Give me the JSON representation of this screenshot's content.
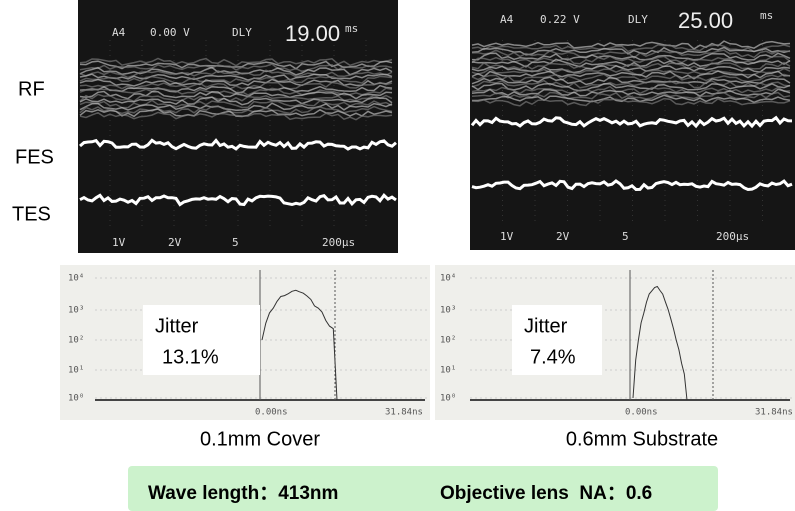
{
  "row_labels": [
    "RF",
    "FES",
    "TES"
  ],
  "scopes": [
    {
      "channel": "A4",
      "volts": "0.00 V",
      "mode": "DLY",
      "delay": "19.00",
      "delay_unit": "ms",
      "scales": [
        "1V",
        "2V",
        "5",
        "200μs"
      ]
    },
    {
      "channel": "A4",
      "volts": "0.22 V",
      "mode": "DLY",
      "delay": "25.00",
      "delay_unit": "ms",
      "scales": [
        "1V",
        "2V",
        "5",
        "200μs"
      ]
    }
  ],
  "histograms": [
    {
      "yticks": [
        "10⁴",
        "10³",
        "10²",
        "10¹",
        "10⁰"
      ],
      "x_start": "0.00ns",
      "x_end": "31.84ns",
      "label": "Jitter",
      "jitter": "13.1%",
      "caption": "0.1mm Cover"
    },
    {
      "yticks": [
        "10⁴",
        "10³",
        "10²",
        "10¹",
        "10⁰"
      ],
      "x_start": "0.00ns",
      "x_end": "31.84ns",
      "label": "Jitter",
      "jitter": "7.4%",
      "caption": "0.6mm Substrate"
    }
  ],
  "conditions": [
    "Wave length：413nm",
    "Objective lens  NA：0.6"
  ]
}
